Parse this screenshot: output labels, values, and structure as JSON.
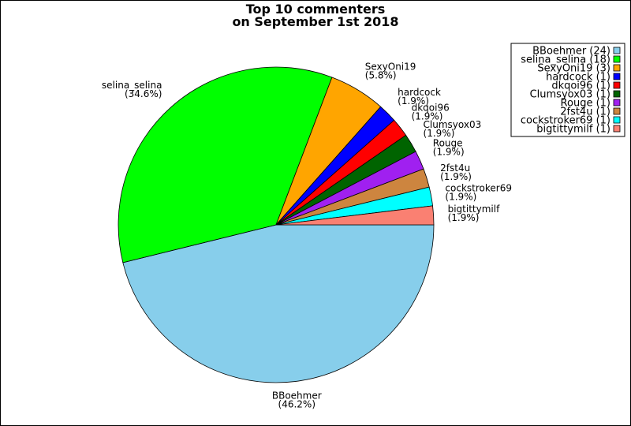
{
  "chart_data": {
    "type": "pie",
    "title": [
      "Top 10 commenters",
      "on September 1st 2018"
    ],
    "slices": [
      {
        "name": "BBoehmer",
        "value": 24,
        "pct": "46.2%",
        "color": "#87ceeb",
        "legend": "BBoehmer (24)"
      },
      {
        "name": "selina_selina",
        "value": 18,
        "pct": "34.6%",
        "color": "#00ff00",
        "legend": "selina_selina (18)"
      },
      {
        "name": "SexyOni19",
        "value": 3,
        "pct": "5.8%",
        "color": "#ffa500",
        "legend": "SexyOni19 (3)"
      },
      {
        "name": "hardcock",
        "value": 1,
        "pct": "1.9%",
        "color": "#0000ff",
        "legend": "hardcock (1)"
      },
      {
        "name": "dkqoi96",
        "value": 1,
        "pct": "1.9%",
        "color": "#ff0000",
        "legend": "dkqoi96 (1)"
      },
      {
        "name": "Clumsyox03",
        "value": 1,
        "pct": "1.9%",
        "color": "#006400",
        "legend": "Clumsyox03 (1)"
      },
      {
        "name": "Rouge",
        "value": 1,
        "pct": "1.9%",
        "color": "#a020f0",
        "legend": "Rouge (1)"
      },
      {
        "name": "2fst4u",
        "value": 1,
        "pct": "1.9%",
        "color": "#cd853f",
        "legend": "2fst4u (1)"
      },
      {
        "name": "cockstroker69",
        "value": 1,
        "pct": "1.9%",
        "color": "#00ffff",
        "legend": "cockstroker69 (1)"
      },
      {
        "name": "bigtittymilf",
        "value": 1,
        "pct": "1.9%",
        "color": "#fa8072",
        "legend": "bigtittymilf (1)"
      }
    ],
    "direction": "counterclockwise",
    "legend_position": "top-right"
  }
}
